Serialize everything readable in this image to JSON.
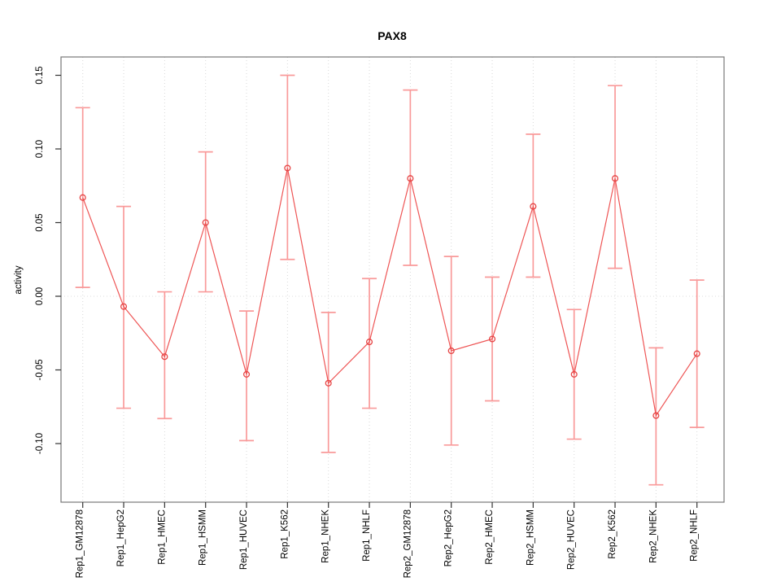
{
  "chart_data": {
    "type": "line",
    "title": "PAX8",
    "xlabel": "",
    "ylabel": "activity",
    "legend_position": "none",
    "grid": "vertical dotted gridlines at each category; dotted horizontal line at y=0",
    "point_marker": "open-circle",
    "error_bars": true,
    "ylim": [
      -0.14,
      0.163
    ],
    "yticks": [
      0.15,
      0.1,
      0.05,
      0.0,
      -0.05,
      -0.1
    ],
    "ytick_labels": [
      "0.15",
      "0.10",
      "0.05",
      "0.00",
      "-0.05",
      "-0.10"
    ],
    "categories": [
      "Rep1_GM12878",
      "Rep1_HepG2",
      "Rep1_HMEC",
      "Rep1_HSMM",
      "Rep1_HUVEC",
      "Rep1_K562",
      "Rep1_NHEK",
      "Rep1_NHLF",
      "Rep2_GM12878",
      "Rep2_HepG2",
      "Rep2_HMEC",
      "Rep2_HSMM",
      "Rep2_HUVEC",
      "Rep2_K562",
      "Rep2_NHEK",
      "Rep2_NHLF"
    ],
    "series": [
      {
        "name": "activity",
        "values": [
          0.067,
          -0.007,
          -0.041,
          0.05,
          -0.053,
          0.087,
          -0.059,
          -0.031,
          0.08,
          -0.037,
          -0.029,
          0.061,
          -0.053,
          0.08,
          -0.081,
          -0.039
        ],
        "error_high": [
          0.128,
          0.061,
          0.003,
          0.098,
          -0.01,
          0.15,
          -0.011,
          0.012,
          0.14,
          0.027,
          0.013,
          0.11,
          -0.009,
          0.143,
          -0.035,
          0.011
        ],
        "error_low": [
          0.006,
          -0.076,
          -0.083,
          0.003,
          -0.098,
          0.025,
          -0.106,
          -0.076,
          0.021,
          -0.101,
          -0.071,
          0.013,
          -0.097,
          0.019,
          -0.128,
          -0.089
        ]
      }
    ],
    "colors": {
      "series_line": "#ee5555",
      "marker_stroke": "#e64545",
      "error_bar": "#f99a9a",
      "gridline": "#d8d8d8",
      "zero_line": "#dcdcdc",
      "box_border": "#777777",
      "tick_mark": "#333333",
      "text": "#000000"
    }
  }
}
